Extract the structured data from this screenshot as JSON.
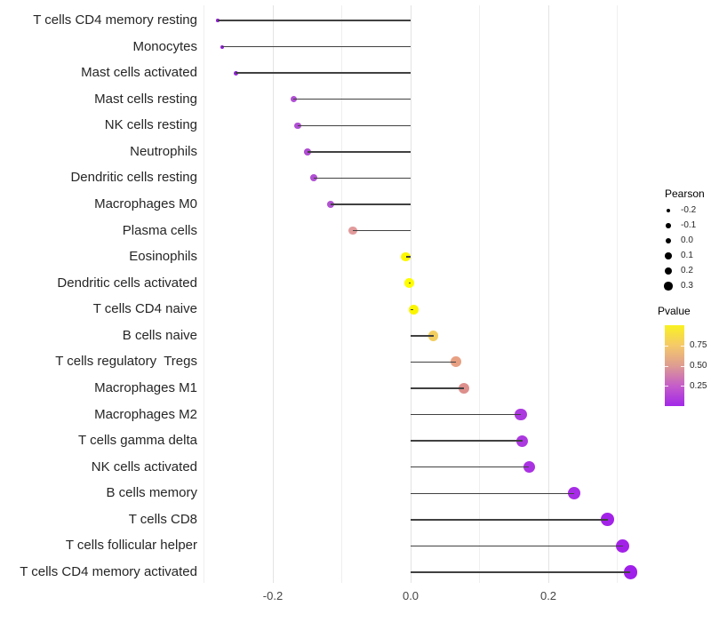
{
  "chart_data": {
    "type": "lollipop",
    "orientation": "horizontal",
    "title": "",
    "xlabel": "",
    "ylabel": "",
    "xlim": [
      -0.31,
      0.34
    ],
    "grid": "vertical only, light gray",
    "x_ticks": [
      {
        "label": "-0.2",
        "value": -0.2
      },
      {
        "label": "0.0",
        "value": 0.0
      },
      {
        "label": "0.2",
        "value": 0.2
      }
    ],
    "x_gridlines_major": [
      -0.2,
      0.0,
      0.2
    ],
    "x_gridlines_minor": [
      -0.3,
      -0.1,
      0.1,
      0.3
    ],
    "series_note": "dot position/size = Pearson correlation, dot color = P value",
    "points": [
      {
        "label": "T cells CD4 memory resting",
        "pearson": -0.28,
        "pvalue_est": 0.06,
        "color": "#8E1ED6"
      },
      {
        "label": "Monocytes",
        "pearson": -0.273,
        "pvalue_est": 0.06,
        "color": "#8E1ED6"
      },
      {
        "label": "Mast cells activated",
        "pearson": -0.254,
        "pvalue_est": 0.08,
        "color": "#9326DB"
      },
      {
        "label": "Mast cells resting",
        "pearson": -0.17,
        "pvalue_est": 0.2,
        "color": "#B04FD4"
      },
      {
        "label": "NK cells resting",
        "pearson": -0.164,
        "pvalue_est": 0.2,
        "color": "#B04FD4"
      },
      {
        "label": "Neutrophils",
        "pearson": -0.15,
        "pvalue_est": 0.19,
        "color": "#AF4BD3"
      },
      {
        "label": "Dendritic cells resting",
        "pearson": -0.141,
        "pvalue_est": 0.2,
        "color": "#B04FD4"
      },
      {
        "label": "Macrophages M0",
        "pearson": -0.116,
        "pvalue_est": 0.21,
        "color": "#B152D2"
      },
      {
        "label": "Plasma cells",
        "pearson": -0.084,
        "pvalue_est": 0.55,
        "color": "#E29A9B"
      },
      {
        "label": "Eosinophils",
        "pearson": -0.007,
        "pvalue_est": 0.96,
        "color": "#FDF800"
      },
      {
        "label": "Dendritic cells activated",
        "pearson": -0.002,
        "pvalue_est": 0.99,
        "color": "#FEFE00"
      },
      {
        "label": "T cells CD4 naive",
        "pearson": 0.004,
        "pvalue_est": 0.95,
        "color": "#FBF500"
      },
      {
        "label": "B cells naive",
        "pearson": 0.033,
        "pvalue_est": 0.8,
        "color": "#F2CE5F"
      },
      {
        "label": "T cells regulatory  Tregs",
        "pearson": 0.066,
        "pvalue_est": 0.65,
        "color": "#E8A083"
      },
      {
        "label": "Macrophages M1",
        "pearson": 0.077,
        "pvalue_est": 0.56,
        "color": "#DD8F8C"
      },
      {
        "label": "Macrophages M2",
        "pearson": 0.16,
        "pvalue_est": 0.13,
        "color": "#AC38E0"
      },
      {
        "label": "T cells gamma delta",
        "pearson": 0.162,
        "pvalue_est": 0.13,
        "color": "#AC38E0"
      },
      {
        "label": "NK cells activated",
        "pearson": 0.172,
        "pvalue_est": 0.11,
        "color": "#AA32E2"
      },
      {
        "label": "B cells memory",
        "pearson": 0.237,
        "pvalue_est": 0.09,
        "color": "#A72CE5"
      },
      {
        "label": "T cells CD8",
        "pearson": 0.286,
        "pvalue_est": 0.04,
        "color": "#A322E8"
      },
      {
        "label": "T cells follicular helper",
        "pearson": 0.308,
        "pvalue_est": 0.04,
        "color": "#A322E8"
      },
      {
        "label": "T cells CD4 memory activated",
        "pearson": 0.319,
        "pvalue_est": 0.03,
        "color": "#A01FEA"
      }
    ],
    "legend_size": {
      "title": "Pearson",
      "items": [
        {
          "label": "-0.2",
          "diameter": 4.7
        },
        {
          "label": "-0.1",
          "diameter": 5.7
        },
        {
          "label": "0.0",
          "diameter": 6.8
        },
        {
          "label": "0.1",
          "diameter": 7.8
        },
        {
          "label": "0.2",
          "diameter": 8.7
        },
        {
          "label": "0.3",
          "diameter": 9.4
        }
      ],
      "dot_color": "#000000"
    },
    "legend_color": {
      "title": "Pvalue",
      "gradient_bottom_to_top": [
        "#A228E8",
        "#C55DC9",
        "#DE9C92",
        "#F5C969",
        "#F9F121"
      ],
      "range": [
        0.0,
        1.0
      ],
      "tick_labels": [
        {
          "label": "0.75",
          "value": 0.75
        },
        {
          "label": "0.50",
          "value": 0.5
        },
        {
          "label": "0.25",
          "value": 0.25
        }
      ]
    }
  }
}
